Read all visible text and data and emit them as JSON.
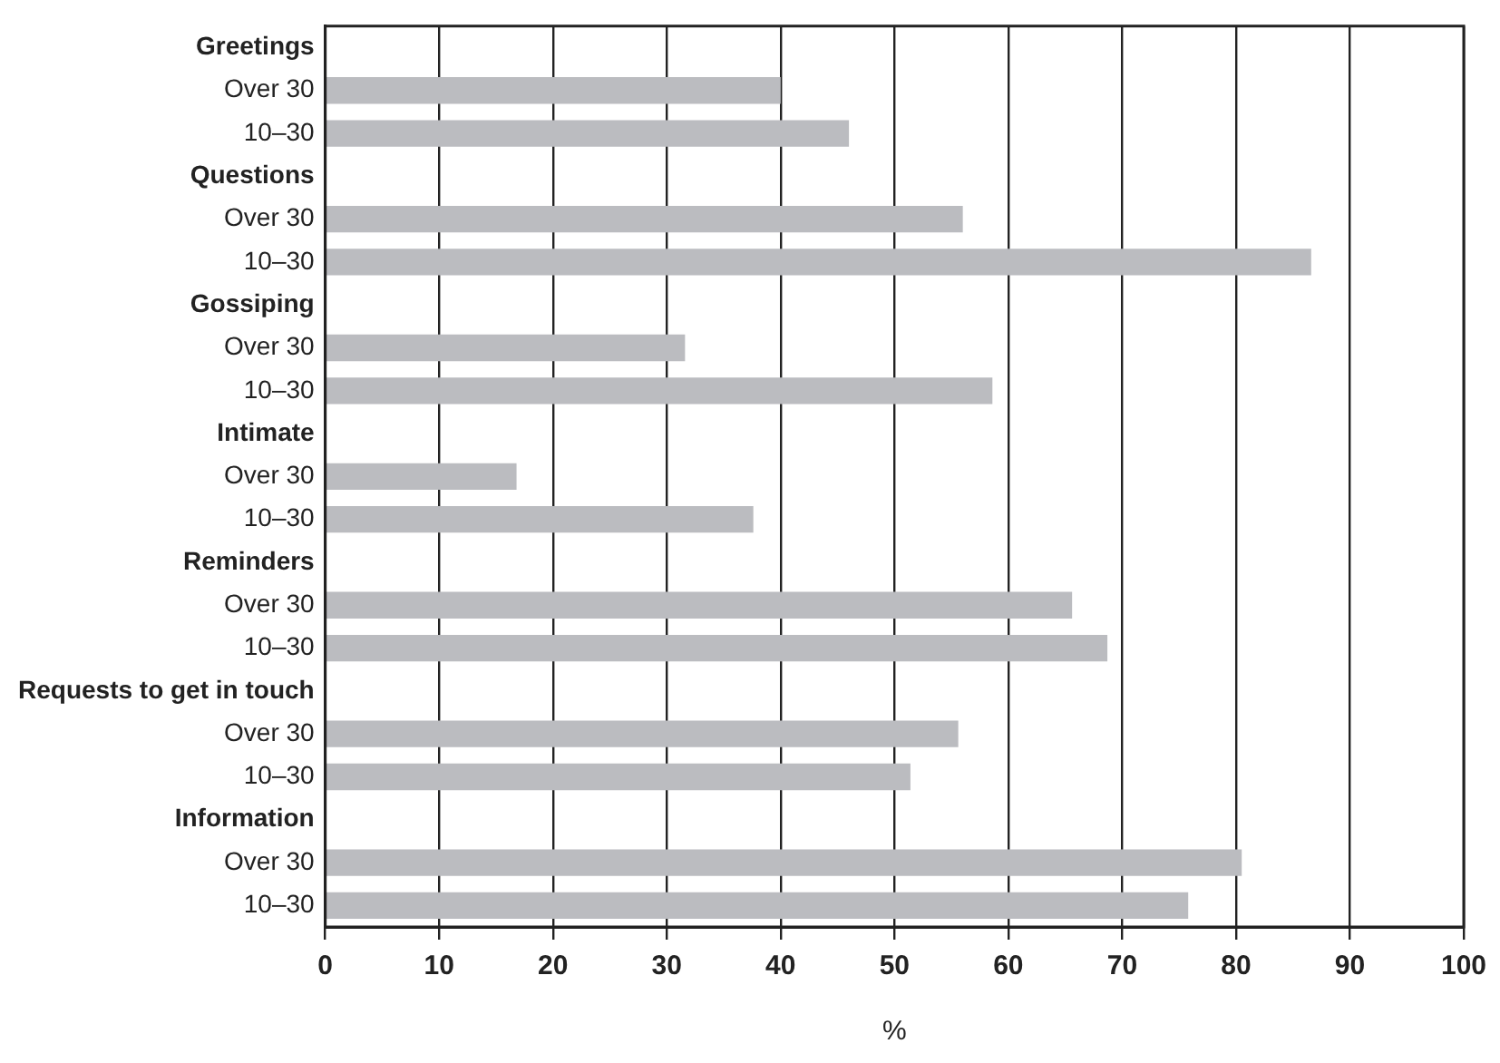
{
  "chart_data": {
    "type": "bar",
    "orientation": "horizontal",
    "xlabel": "%",
    "categories": [
      "Greetings",
      "Over 30",
      "10–30",
      "Questions",
      "Over 30",
      "10–30",
      "Gossiping",
      "Over 30",
      "10–30",
      "Intimate",
      "Over 30",
      "10–30",
      "Reminders",
      "Over 30",
      "10–30",
      "Requests to get in touch",
      "Over 30",
      "10–30",
      "Information",
      "Over 30",
      "10–30"
    ],
    "values": [
      null,
      40,
      46,
      null,
      56,
      86.6,
      null,
      31.6,
      58.6,
      null,
      16.8,
      37.6,
      null,
      65.6,
      68.7,
      null,
      55.6,
      51.4,
      null,
      80.5,
      75.8
    ],
    "color": "#bbbcc0",
    "xlim": [
      0,
      100
    ],
    "xticks": [
      0,
      10,
      20,
      30,
      40,
      50,
      60,
      70,
      80,
      90,
      100
    ],
    "grid": "x",
    "legend": false
  }
}
